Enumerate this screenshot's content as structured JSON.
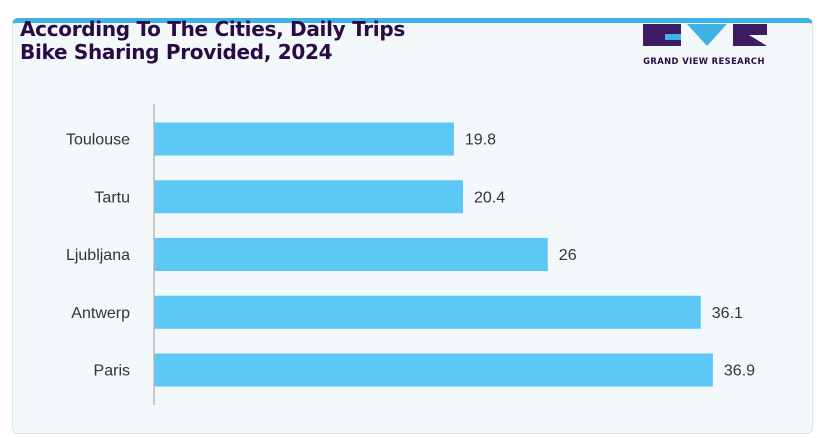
{
  "header": {
    "title_line1": "According To The Cities, Daily Trips",
    "title_line2": "Bike Sharing Provided, 2024"
  },
  "logo": {
    "text": "GRAND VIEW RESEARCH"
  },
  "colors": {
    "bar": "#5bc8f5",
    "title": "#2a0b45",
    "logo_purple": "#3d1c64",
    "logo_cyan": "#3fb4e4",
    "axis": "#b9b9b9",
    "card_bg": "#f3f8fb",
    "card_top_border": "#3fb4e4"
  },
  "chart_data": {
    "type": "bar",
    "orientation": "horizontal",
    "categories": [
      "Toulouse",
      "Tartu",
      "Ljubljana",
      "Antwerp",
      "Paris"
    ],
    "values": [
      19.8,
      20.4,
      26,
      36.1,
      36.9
    ],
    "value_labels": [
      "19.8",
      "20.4",
      "26",
      "36.1",
      "36.9"
    ],
    "title": "According To The Cities, Daily Trips Bike Sharing Provided, 2024",
    "xlabel": "",
    "ylabel": "",
    "xlim": [
      0,
      41
    ],
    "grid": false,
    "legend": "none"
  }
}
